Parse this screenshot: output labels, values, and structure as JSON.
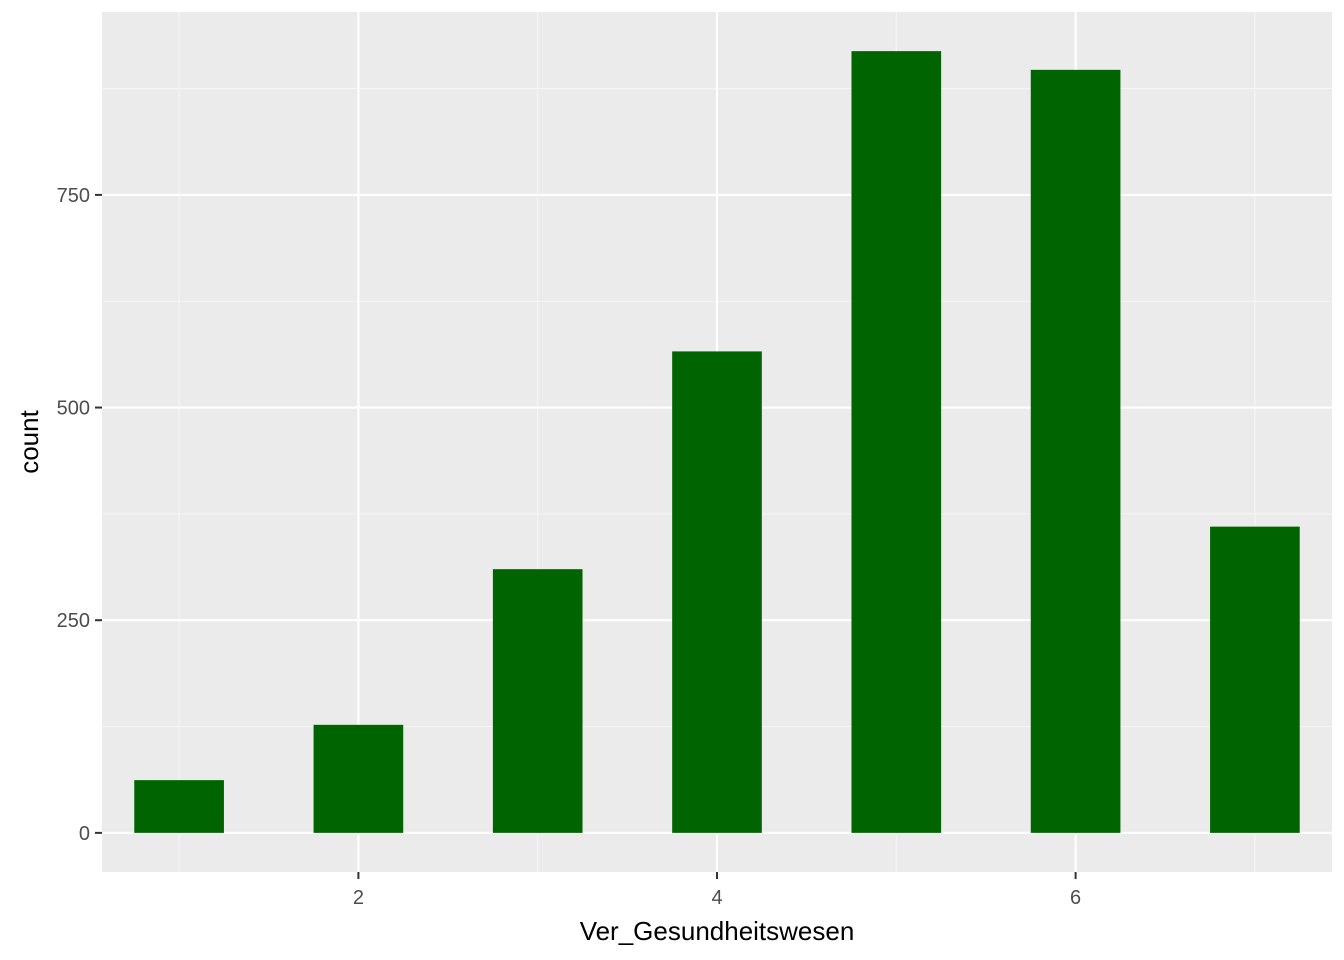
{
  "chart_data": {
    "type": "bar",
    "x": [
      1,
      2,
      3,
      4,
      5,
      6,
      7
    ],
    "values": [
      62,
      127,
      310,
      566,
      919,
      897,
      360
    ],
    "xlabel": "Ver_Gesundheitswesen",
    "ylabel": "count",
    "xlim": [
      0.57,
      7.43
    ],
    "ylim": [
      -46,
      965
    ],
    "x_ticks": [
      2,
      4,
      6
    ],
    "x_tick_labels": [
      "2",
      "4",
      "6"
    ],
    "y_ticks": [
      0,
      250,
      500,
      750
    ],
    "y_tick_labels": [
      "0",
      "250",
      "500",
      "750"
    ],
    "bar_width": 0.5,
    "grid": true,
    "legend": "none",
    "colors": {
      "bar": "#006400",
      "panel_background": "#EBEBEB",
      "grid_major": "#FFFFFF",
      "grid_minor": "#F5F5F5",
      "tick_mark": "#333333"
    }
  }
}
